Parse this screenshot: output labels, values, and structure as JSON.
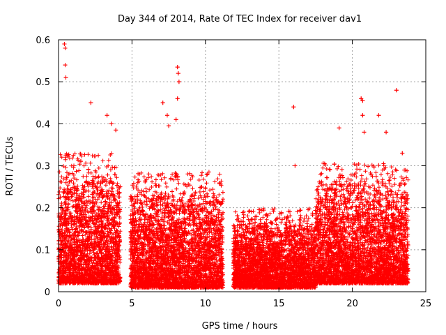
{
  "chart_data": {
    "type": "scatter",
    "title": "Day 344 of 2014, Rate Of TEC Index for receiver dav1",
    "xlabel": "GPS time / hours",
    "ylabel": "ROTI / TECUs",
    "xlim": [
      0,
      25
    ],
    "ylim": [
      0,
      0.6
    ],
    "grid": true,
    "marker": "+",
    "color": "#ff0000",
    "x_ticks": [
      0,
      5,
      10,
      15,
      20,
      25
    ],
    "x_tick_labels": [
      "0",
      "5",
      "10",
      "15",
      "20",
      "25"
    ],
    "y_ticks": [
      0,
      0.1,
      0.2,
      0.3,
      0.4,
      0.5,
      0.6
    ],
    "y_tick_labels": [
      "0",
      "0.1",
      "0.2",
      "0.3",
      "0.4",
      "0.5",
      "0.6"
    ],
    "data_gaps_hours": [
      [
        4.2,
        4.9
      ],
      [
        11.2,
        11.9
      ]
    ],
    "segments": [
      {
        "x_start": 0.0,
        "x_end": 4.2,
        "typical_max": 0.3,
        "floor": 0.02
      },
      {
        "x_start": 4.9,
        "x_end": 11.2,
        "typical_max": 0.26,
        "floor": 0.01
      },
      {
        "x_start": 11.9,
        "x_end": 17.5,
        "typical_max": 0.18,
        "floor": 0.01
      },
      {
        "x_start": 17.5,
        "x_end": 23.8,
        "typical_max": 0.28,
        "floor": 0.02
      }
    ],
    "notable_points": [
      {
        "x": 0.4,
        "y": 0.59
      },
      {
        "x": 0.45,
        "y": 0.58
      },
      {
        "x": 0.45,
        "y": 0.54
      },
      {
        "x": 0.5,
        "y": 0.51
      },
      {
        "x": 2.2,
        "y": 0.45
      },
      {
        "x": 3.3,
        "y": 0.42
      },
      {
        "x": 3.6,
        "y": 0.4
      },
      {
        "x": 3.9,
        "y": 0.385
      },
      {
        "x": 7.1,
        "y": 0.45
      },
      {
        "x": 7.4,
        "y": 0.42
      },
      {
        "x": 7.5,
        "y": 0.395
      },
      {
        "x": 8.1,
        "y": 0.535
      },
      {
        "x": 8.15,
        "y": 0.52
      },
      {
        "x": 8.2,
        "y": 0.5
      },
      {
        "x": 8.1,
        "y": 0.46
      },
      {
        "x": 8.0,
        "y": 0.41
      },
      {
        "x": 16.0,
        "y": 0.44
      },
      {
        "x": 16.1,
        "y": 0.3
      },
      {
        "x": 19.1,
        "y": 0.39
      },
      {
        "x": 20.6,
        "y": 0.46
      },
      {
        "x": 20.7,
        "y": 0.455
      },
      {
        "x": 20.7,
        "y": 0.42
      },
      {
        "x": 20.8,
        "y": 0.38
      },
      {
        "x": 21.8,
        "y": 0.42
      },
      {
        "x": 22.3,
        "y": 0.38
      },
      {
        "x": 23.0,
        "y": 0.48
      },
      {
        "x": 23.4,
        "y": 0.33
      }
    ]
  }
}
